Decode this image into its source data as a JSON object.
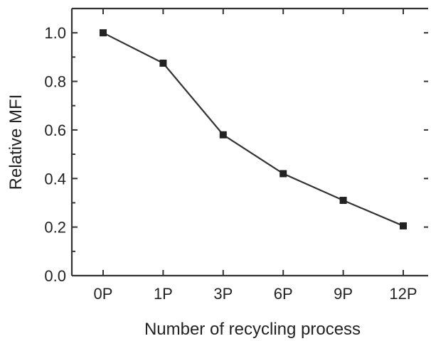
{
  "chart_data": {
    "type": "line",
    "xlabel": "Number of recycling process",
    "ylabel": "Relative MFI",
    "categories": [
      "0P",
      "1P",
      "3P",
      "6P",
      "9P",
      "12P"
    ],
    "series": [
      {
        "values": [
          1.0,
          0.875,
          0.58,
          0.42,
          0.31,
          0.205
        ]
      }
    ],
    "ylim": [
      0.0,
      1.1
    ],
    "yticks": [
      0.0,
      0.2,
      0.4,
      0.6,
      0.8,
      1.0
    ],
    "ytick_labels": [
      "0.0",
      "0.2",
      "0.4",
      "0.6",
      "0.8",
      "1.0"
    ],
    "grid": false,
    "legend": false,
    "marker": "square",
    "colors": {
      "line": "#333333",
      "marker": "#222222"
    }
  }
}
